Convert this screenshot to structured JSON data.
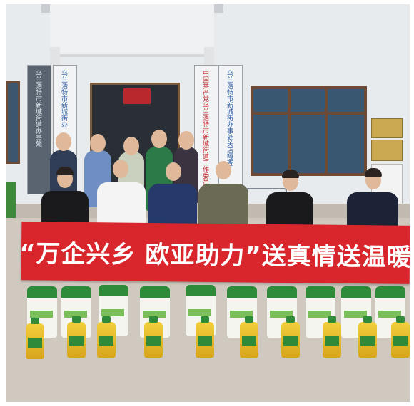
{
  "photo": {
    "banner_text_left": "“万企兴乡 欧亚助力”",
    "banner_text_mid": "送真情",
    "banner_text_right": "送温暖",
    "plaque_1": "乌兰浩特市新城街道办事处",
    "plaque_2": "乌兰浩特市新城街办",
    "plaque_3": "中国共产党乌兰浩特市新城街道工作委员会",
    "plaque_4": "乌兰浩特市新城街办事处关店嘎查",
    "colors": {
      "banner": "#d9262c",
      "sack_top": "#2d8b3a",
      "oil": "#e2b52a"
    },
    "icons": [
      "flag-emblem-icon"
    ]
  }
}
